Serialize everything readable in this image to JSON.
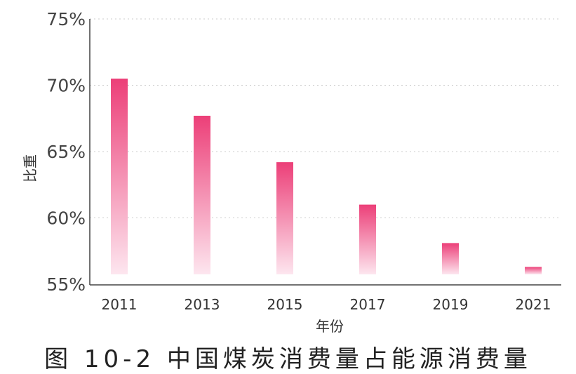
{
  "chart_data": {
    "type": "bar",
    "categories": [
      "2011",
      "2013",
      "2015",
      "2017",
      "2019",
      "2021"
    ],
    "values": [
      70.5,
      67.7,
      64.2,
      61.0,
      58.1,
      56.3
    ],
    "xlabel": "年份",
    "ylabel": "比重",
    "ylim": [
      55,
      75
    ],
    "yticks": [
      "55%",
      "60%",
      "65%",
      "70%",
      "75%"
    ],
    "grid": true,
    "bar_color_top": "#ec3f78",
    "bar_color_bottom": "#fde6ef"
  },
  "caption": "图 10-2 中国煤炭消费量占能源消费量"
}
